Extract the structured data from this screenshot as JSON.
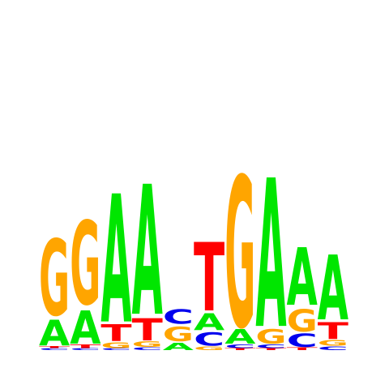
{
  "colors": {
    "A": "#00e600",
    "C": "#0000ee",
    "G": "#ffa500",
    "T": "#ff0000"
  },
  "max_bits": 2,
  "columns": [
    [
      {
        "l": "C",
        "h": 0.02
      },
      {
        "l": "T",
        "h": 0.02
      },
      {
        "l": "A",
        "h": 0.28
      },
      {
        "l": "G",
        "h": 0.82
      }
    ],
    [
      {
        "l": "C",
        "h": 0.02
      },
      {
        "l": "T",
        "h": 0.04
      },
      {
        "l": "A",
        "h": 0.36
      },
      {
        "l": "G",
        "h": 0.9
      }
    ],
    [
      {
        "l": "C",
        "h": 0.02
      },
      {
        "l": "G",
        "h": 0.06
      },
      {
        "l": "T",
        "h": 0.18
      },
      {
        "l": "A",
        "h": 1.38
      }
    ],
    [
      {
        "l": "C",
        "h": 0.03
      },
      {
        "l": "G",
        "h": 0.06
      },
      {
        "l": "T",
        "h": 0.24
      },
      {
        "l": "A",
        "h": 1.4
      }
    ],
    [
      {
        "l": "A",
        "h": 0.08
      },
      {
        "l": "G",
        "h": 0.16
      },
      {
        "l": "C",
        "h": 0.16
      }
    ],
    [
      {
        "l": "G",
        "h": 0.04
      },
      {
        "l": "C",
        "h": 0.14
      },
      {
        "l": "A",
        "h": 0.18
      },
      {
        "l": "T",
        "h": 0.74
      }
    ],
    [
      {
        "l": "T",
        "h": 0.02
      },
      {
        "l": "C",
        "h": 0.04
      },
      {
        "l": "A",
        "h": 0.16
      },
      {
        "l": "G",
        "h": 1.62
      }
    ],
    [
      {
        "l": "T",
        "h": 0.02
      },
      {
        "l": "C",
        "h": 0.04
      },
      {
        "l": "G",
        "h": 0.16
      },
      {
        "l": "A",
        "h": 1.6
      }
    ],
    [
      {
        "l": "T",
        "h": 0.03
      },
      {
        "l": "C",
        "h": 0.14
      },
      {
        "l": "G",
        "h": 0.24
      },
      {
        "l": "A",
        "h": 0.62
      }
    ],
    [
      {
        "l": "C",
        "h": 0.04
      },
      {
        "l": "G",
        "h": 0.06
      },
      {
        "l": "T",
        "h": 0.18
      },
      {
        "l": "A",
        "h": 0.7
      }
    ]
  ]
}
